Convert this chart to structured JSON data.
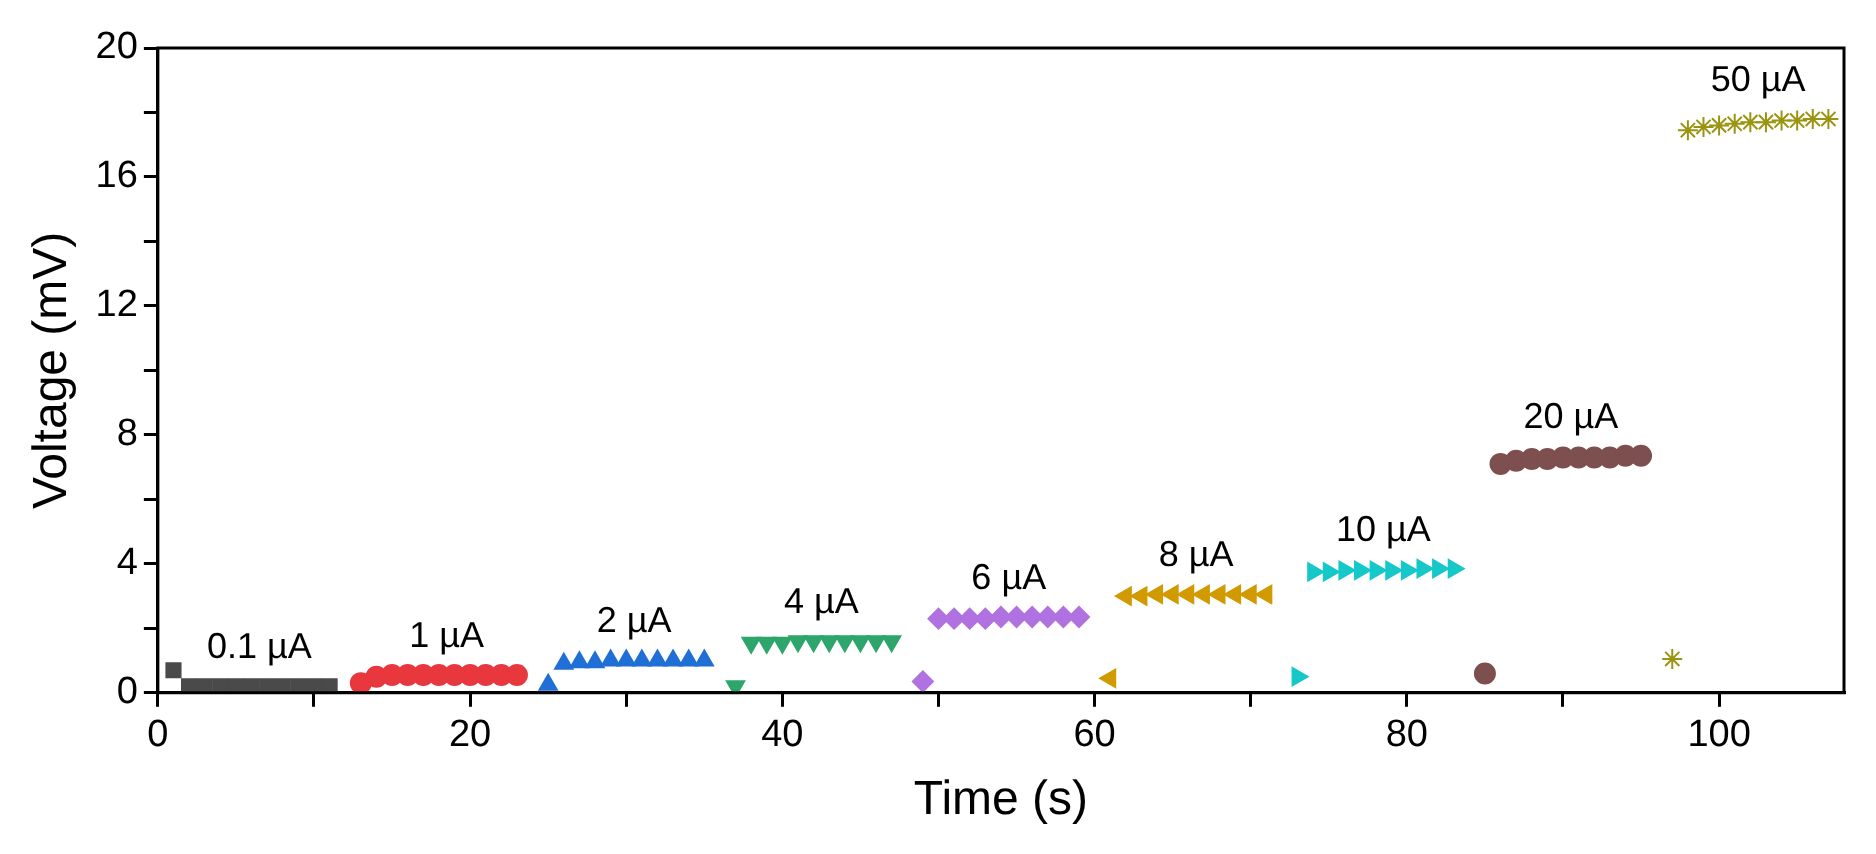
{
  "chart_data": {
    "type": "scatter",
    "xlabel": "Time (s)",
    "ylabel": "Voltage (mV)",
    "xlim": [
      0,
      108
    ],
    "ylim": [
      0,
      20
    ],
    "xticks": [
      0,
      {
        "value": 10,
        "label": null
      },
      20,
      {
        "value": 30,
        "label": null
      },
      40,
      {
        "value": 50,
        "label": null
      },
      60,
      {
        "value": 70,
        "label": null
      },
      80,
      {
        "value": 90,
        "label": null
      },
      100
    ],
    "yticks": [
      0,
      {
        "value": 2,
        "label": null
      },
      4,
      {
        "value": 6,
        "label": null
      },
      8,
      {
        "value": 10,
        "label": null
      },
      12,
      {
        "value": 14,
        "label": null
      },
      16,
      {
        "value": 18,
        "label": null
      },
      20
    ],
    "grid": false,
    "legend": false,
    "series": [
      {
        "name": "0.1 µA",
        "color": "#4a4a4a",
        "marker": "square",
        "x": [
          1,
          2,
          3,
          4,
          5,
          6,
          7,
          8,
          9,
          10,
          11
        ],
        "values": [
          0.7,
          0.2,
          0.2,
          0.2,
          0.2,
          0.2,
          0.2,
          0.2,
          0.2,
          0.2,
          0.2
        ]
      },
      {
        "name": "1 µA",
        "color": "#e8383d",
        "marker": "circle",
        "x": [
          13,
          14,
          15,
          16,
          17,
          18,
          19,
          20,
          21,
          22,
          23
        ],
        "values": [
          0.3,
          0.5,
          0.55,
          0.55,
          0.55,
          0.55,
          0.55,
          0.55,
          0.55,
          0.55,
          0.55
        ]
      },
      {
        "name": "2 µA",
        "color": "#1f6fd6",
        "marker": "triangle",
        "x": [
          25,
          26,
          27,
          28,
          29,
          30,
          31,
          32,
          33,
          34,
          35
        ],
        "values": [
          0.25,
          0.9,
          0.95,
          0.95,
          1,
          1,
          1,
          1,
          1,
          1,
          1
        ]
      },
      {
        "name": "4 µA",
        "color": "#2ea56a",
        "marker": "triangle",
        "x": [
          37,
          38,
          39,
          40,
          41,
          42,
          43,
          44,
          45,
          46,
          47
        ],
        "values": [
          0.2,
          1.55,
          1.55,
          1.55,
          1.6,
          1.6,
          1.6,
          1.6,
          1.6,
          1.6,
          1.6
        ]
      },
      {
        "name": "6 µA",
        "color": "#b072e0",
        "marker": "diamond",
        "x": [
          49,
          50,
          51,
          52,
          53,
          54,
          55,
          56,
          57,
          58,
          59
        ],
        "values": [
          0.35,
          2.3,
          2.3,
          2.3,
          2.3,
          2.35,
          2.35,
          2.35,
          2.35,
          2.35,
          2.35
        ]
      },
      {
        "name": "8 µA",
        "color": "#d09a00",
        "marker": "triangle",
        "x": [
          61,
          62,
          63,
          64,
          65,
          66,
          67,
          68,
          69,
          70,
          71
        ],
        "values": [
          0.45,
          3,
          3,
          3.05,
          3.05,
          3.05,
          3.05,
          3.05,
          3.05,
          3.05,
          3.05
        ]
      },
      {
        "name": "10 µA",
        "color": "#16c8c8",
        "marker": "triangle",
        "x": [
          73,
          74,
          75,
          76,
          77,
          78,
          79,
          80,
          81,
          82,
          83
        ],
        "values": [
          0.5,
          3.75,
          3.75,
          3.8,
          3.8,
          3.8,
          3.8,
          3.8,
          3.85,
          3.85,
          3.85
        ]
      },
      {
        "name": "20 µA",
        "color": "#7d4f4f",
        "marker": "circle",
        "x": [
          85,
          86,
          87,
          88,
          89,
          90,
          91,
          92,
          93,
          94,
          95
        ],
        "values": [
          0.6,
          7.1,
          7.2,
          7.25,
          7.25,
          7.3,
          7.3,
          7.3,
          7.3,
          7.35,
          7.35
        ]
      },
      {
        "name": "50 µA",
        "color": "#9a9410",
        "marker": "cross",
        "x": [
          97,
          98,
          99,
          100,
          101,
          102,
          103,
          104,
          105,
          106,
          107
        ],
        "values": [
          1.05,
          17.45,
          17.55,
          17.6,
          17.65,
          17.7,
          17.7,
          17.75,
          17.75,
          17.8,
          17.8
        ]
      }
    ]
  }
}
